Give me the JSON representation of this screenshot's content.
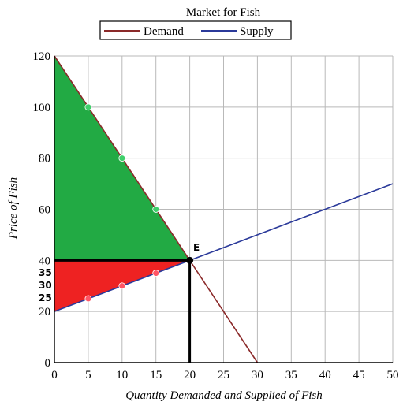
{
  "chart_data": {
    "type": "line",
    "title": "Market for Fish",
    "xlabel": "Quantity Demanded and Supplied of Fish",
    "ylabel": "Price of Fish",
    "xlim": [
      0,
      50
    ],
    "ylim": [
      0,
      120
    ],
    "x_ticks": [
      0,
      5,
      10,
      15,
      20,
      25,
      30,
      35,
      40,
      45,
      50
    ],
    "y_ticks": [
      0,
      20,
      40,
      60,
      80,
      100,
      120
    ],
    "grid": true,
    "legend_position": "top-center",
    "series": [
      {
        "name": "Demand",
        "color": "#8b2a2a",
        "points": [
          [
            0,
            120
          ],
          [
            30,
            0
          ]
        ]
      },
      {
        "name": "Supply",
        "color": "#2b3a9a",
        "points": [
          [
            0,
            20
          ],
          [
            50,
            70
          ]
        ]
      }
    ],
    "equilibrium": {
      "label": "E",
      "x": 20,
      "y": 40
    },
    "consumer_surplus_region": {
      "color": "#22aa44",
      "points": [
        [
          0,
          120
        ],
        [
          20,
          40
        ],
        [
          0,
          40
        ]
      ]
    },
    "producer_surplus_region": {
      "color": "#ee2222",
      "points": [
        [
          0,
          40
        ],
        [
          20,
          40
        ],
        [
          0,
          20
        ]
      ]
    },
    "demand_markers": [
      [
        5,
        100
      ],
      [
        10,
        80
      ],
      [
        15,
        60
      ]
    ],
    "supply_markers": [
      [
        5,
        25
      ],
      [
        10,
        30
      ],
      [
        15,
        35
      ]
    ],
    "supply_price_labels": [
      "35",
      "30",
      "25"
    ]
  }
}
